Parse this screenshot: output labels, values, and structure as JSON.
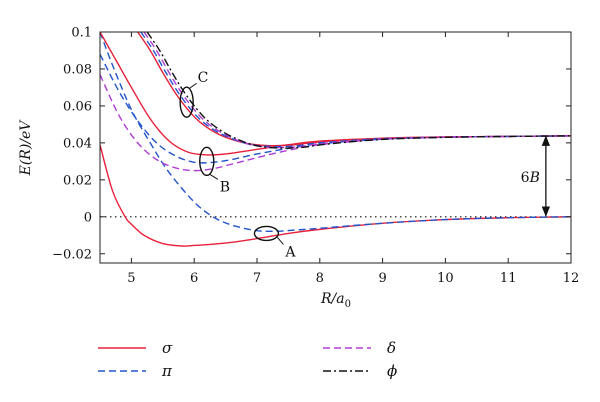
{
  "chart_data": {
    "type": "line",
    "xlabel": "R/a0",
    "xlabel_parts": {
      "main": "R/a",
      "sub": "0"
    },
    "ylabel": "E(R)/eV",
    "xlim": [
      4.5,
      12
    ],
    "ylim": [
      -0.025,
      0.1
    ],
    "xticks": [
      5,
      6,
      7,
      8,
      9,
      10,
      11,
      12
    ],
    "yticks": [
      -0.02,
      0,
      0.02,
      0.04,
      0.06,
      0.08,
      0.1
    ],
    "ytick_labels": [
      "−0.02",
      "0",
      "0.02",
      "0.04",
      "0.06",
      "0.08",
      "0.1"
    ],
    "grid": false,
    "legend": [
      {
        "name": "σ",
        "color": "#e8203a",
        "style": "solid"
      },
      {
        "name": "π",
        "color": "#2255cc",
        "style": "dashed"
      },
      {
        "name": "δ",
        "color": "#b13bd6",
        "style": "dashed"
      },
      {
        "name": "ϕ",
        "color": "#111111",
        "style": "dashdot"
      }
    ],
    "reference_line": {
      "y": 0,
      "style": "dotted"
    },
    "annotations": [
      {
        "label": "A",
        "x": 7.15,
        "y": -0.009
      },
      {
        "label": "B",
        "x": 6.2,
        "y": 0.03
      },
      {
        "label": "C",
        "x": 5.88,
        "y": 0.062
      },
      {
        "label": "6B",
        "x": 11.6,
        "y1": 0,
        "y2": 0.044
      }
    ],
    "series": [
      {
        "name": "σ",
        "group": "A",
        "color": "#e8203a",
        "style": "solid",
        "x": [
          4.5,
          4.7,
          4.9,
          5.0,
          5.2,
          5.5,
          5.8,
          6.0,
          6.3,
          6.6,
          7.0,
          7.5,
          8.0,
          9.0,
          10.0,
          11.0,
          12.0
        ],
        "y": [
          0.039,
          0.014,
          0.0,
          -0.004,
          -0.01,
          -0.0145,
          -0.0158,
          -0.0155,
          -0.0148,
          -0.0138,
          -0.0118,
          -0.009,
          -0.0068,
          -0.0035,
          -0.0015,
          -0.0005,
          0.0
        ]
      },
      {
        "name": "π",
        "group": "A",
        "color": "#2255cc",
        "style": "dashed",
        "x": [
          4.5,
          4.7,
          5.0,
          5.3,
          5.6,
          6.0,
          6.3,
          6.6,
          7.0,
          7.3,
          7.6,
          8.0,
          9.0,
          10.0,
          11.0,
          12.0
        ],
        "y": [
          0.1,
          0.082,
          0.058,
          0.04,
          0.024,
          0.008,
          0.0,
          -0.0045,
          -0.0075,
          -0.0078,
          -0.0072,
          -0.0062,
          -0.0035,
          -0.0015,
          -0.0005,
          0.0
        ]
      },
      {
        "name": "σ",
        "group": "B",
        "color": "#e8203a",
        "style": "solid",
        "x": [
          4.5,
          4.8,
          5.0,
          5.3,
          5.6,
          5.9,
          6.2,
          6.5,
          7.0,
          7.5,
          8.0,
          9.0,
          10.0,
          11.0,
          12.0
        ],
        "y": [
          0.1,
          0.082,
          0.07,
          0.053,
          0.041,
          0.035,
          0.0335,
          0.034,
          0.0365,
          0.039,
          0.041,
          0.0425,
          0.0432,
          0.0435,
          0.0438
        ]
      },
      {
        "name": "π",
        "group": "B",
        "color": "#2255cc",
        "style": "dashed",
        "x": [
          4.5,
          4.8,
          5.1,
          5.4,
          5.7,
          6.0,
          6.3,
          6.6,
          7.0,
          7.5,
          8.0,
          9.0,
          10.0,
          11.0,
          12.0
        ],
        "y": [
          0.088,
          0.068,
          0.052,
          0.04,
          0.033,
          0.0295,
          0.0295,
          0.031,
          0.034,
          0.037,
          0.0395,
          0.042,
          0.043,
          0.0435,
          0.0438
        ]
      },
      {
        "name": "δ",
        "group": "B",
        "color": "#b13bd6",
        "style": "dashed",
        "x": [
          4.5,
          4.8,
          5.1,
          5.4,
          5.7,
          6.0,
          6.3,
          6.6,
          7.0,
          7.5,
          8.0,
          9.0,
          10.0,
          11.0,
          12.0
        ],
        "y": [
          0.077,
          0.055,
          0.04,
          0.031,
          0.0265,
          0.025,
          0.026,
          0.0285,
          0.032,
          0.036,
          0.039,
          0.042,
          0.043,
          0.0435,
          0.0438
        ]
      },
      {
        "name": "σ",
        "group": "C",
        "color": "#e8203a",
        "style": "solid",
        "x": [
          5.1,
          5.3,
          5.5,
          5.7,
          5.9,
          6.1,
          6.4,
          6.8,
          7.2,
          7.6,
          8.0,
          9.0,
          10.0,
          11.0,
          12.0
        ],
        "y": [
          0.1,
          0.09,
          0.078,
          0.067,
          0.058,
          0.051,
          0.0445,
          0.04,
          0.0385,
          0.039,
          0.0405,
          0.0425,
          0.0432,
          0.0435,
          0.0438
        ]
      },
      {
        "name": "π",
        "group": "C",
        "color": "#2255cc",
        "style": "dashed",
        "x": [
          5.15,
          5.35,
          5.55,
          5.75,
          5.95,
          6.15,
          6.45,
          6.85,
          7.25,
          7.65,
          8.0,
          9.0,
          10.0,
          11.0,
          12.0
        ],
        "y": [
          0.1,
          0.09,
          0.078,
          0.067,
          0.058,
          0.051,
          0.0445,
          0.0395,
          0.038,
          0.0385,
          0.04,
          0.0423,
          0.0431,
          0.0435,
          0.0438
        ]
      },
      {
        "name": "δ",
        "group": "C",
        "color": "#b13bd6",
        "style": "dashed",
        "x": [
          5.2,
          5.4,
          5.6,
          5.8,
          6.0,
          6.2,
          6.5,
          6.9,
          7.3,
          7.7,
          8.0,
          9.0,
          10.0,
          11.0,
          12.0
        ],
        "y": [
          0.1,
          0.09,
          0.078,
          0.067,
          0.058,
          0.051,
          0.0443,
          0.039,
          0.0375,
          0.038,
          0.0395,
          0.0421,
          0.0431,
          0.0435,
          0.0438
        ]
      },
      {
        "name": "ϕ",
        "group": "C",
        "color": "#111111",
        "style": "dashdot",
        "x": [
          5.25,
          5.45,
          5.65,
          5.85,
          6.05,
          6.25,
          6.55,
          6.95,
          7.35,
          7.75,
          8.1,
          9.0,
          10.0,
          11.0,
          12.0
        ],
        "y": [
          0.1,
          0.09,
          0.078,
          0.067,
          0.058,
          0.051,
          0.0442,
          0.0388,
          0.0372,
          0.0377,
          0.0393,
          0.0419,
          0.043,
          0.0435,
          0.0438
        ]
      }
    ]
  }
}
